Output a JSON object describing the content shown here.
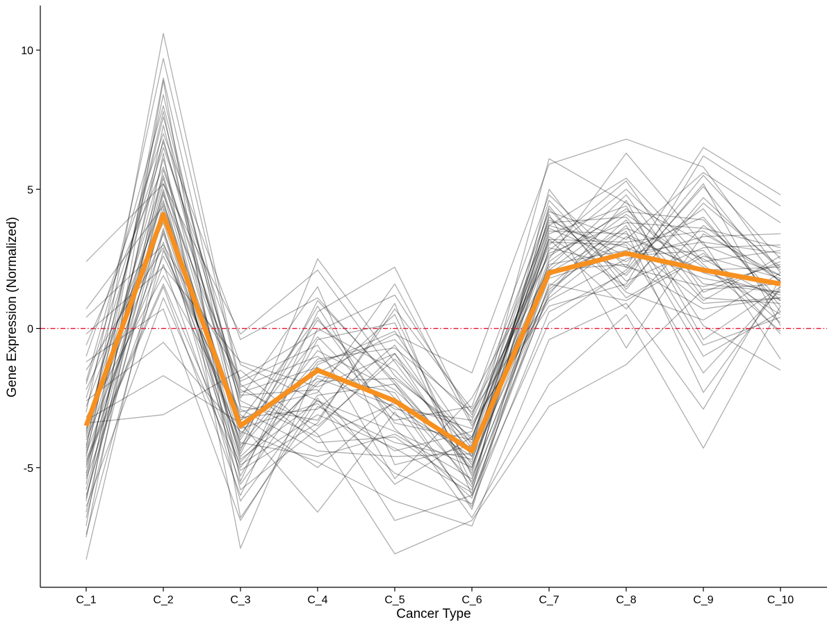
{
  "chart_data": {
    "type": "line",
    "title": "",
    "xlabel": "Cancer Type",
    "ylabel": "Gene Expression (Normalized)",
    "categories": [
      "C_1",
      "C_2",
      "C_3",
      "C_4",
      "C_5",
      "C_6",
      "C_7",
      "C_8",
      "C_9",
      "C_10"
    ],
    "y_ticks": [
      -5,
      0,
      5,
      10
    ],
    "ylim": [
      -9.3,
      11.6
    ],
    "grid": false,
    "legend": "none",
    "reference_line": {
      "y": 0,
      "style": "dot-dash",
      "color": "#e8102e"
    },
    "background_series_color": "#000000",
    "highlight_color": "#f7901e",
    "highlight_series": {
      "values": [
        -3.5,
        4.1,
        -3.5,
        -1.5,
        -2.6,
        -4.4,
        2.0,
        2.7,
        2.1,
        1.6
      ]
    },
    "series": [
      {
        "values": [
          2.4,
          5.2,
          -0.2,
          2.1,
          -1.7,
          -4.1,
          3.7,
          2.9,
          1.8,
          1.3
        ]
      },
      {
        "values": [
          0.7,
          4.4,
          -3.5,
          -1.6,
          -0.2,
          -1.6,
          5.9,
          6.8,
          5.8,
          2.0
        ]
      },
      {
        "values": [
          0.4,
          3.0,
          -1.8,
          -0.1,
          1.2,
          -3.1,
          4.2,
          3.2,
          5.6,
          3.8
        ]
      },
      {
        "values": [
          -0.2,
          2.2,
          -1.2,
          -2.1,
          -0.9,
          -4.3,
          6.1,
          4.5,
          3.1,
          2.7
        ]
      },
      {
        "values": [
          -0.6,
          5.8,
          -2.3,
          -1.4,
          -3.3,
          -2.8,
          4.8,
          2.2,
          6.5,
          4.8
        ]
      },
      {
        "values": [
          -1.0,
          7.0,
          -0.4,
          1.1,
          -2.0,
          -5.0,
          2.5,
          6.3,
          3.0,
          1.9
        ]
      },
      {
        "values": [
          -1.5,
          2.9,
          -4.0,
          0.3,
          -2.5,
          -5.5,
          3.3,
          1.5,
          4.5,
          2.2
        ]
      },
      {
        "values": [
          -1.9,
          8.0,
          -2.8,
          -3.3,
          0.7,
          -2.9,
          2.1,
          4.1,
          2.2,
          0.5
        ]
      },
      {
        "values": [
          -2.2,
          3.8,
          -4.4,
          2.5,
          -1.2,
          -4.9,
          1.9,
          3.1,
          0.9,
          1.1
        ]
      },
      {
        "values": [
          -2.5,
          6.5,
          -1.3,
          -2.6,
          -4.4,
          -3.7,
          3.9,
          2.6,
          2.8,
          -0.2
        ]
      },
      {
        "values": [
          -2.8,
          4.6,
          -5.3,
          -0.4,
          0.2,
          -5.6,
          1.2,
          4.6,
          -0.4,
          1.5
        ]
      },
      {
        "values": [
          -3.0,
          9.7,
          -2.1,
          -1.0,
          -2.9,
          -3.3,
          2.7,
          3.8,
          3.6,
          2.9
        ]
      },
      {
        "values": [
          -3.2,
          1.9,
          -3.2,
          -2.9,
          -0.6,
          -4.6,
          4.0,
          1.9,
          5.2,
          0.1
        ]
      },
      {
        "values": [
          -3.4,
          5.5,
          -3.9,
          0.8,
          -3.6,
          -6.1,
          1.6,
          1.0,
          2.6,
          1.8
        ]
      },
      {
        "values": [
          -3.6,
          3.4,
          -4.8,
          -1.9,
          -1.8,
          -3.9,
          3.0,
          5.3,
          1.3,
          2.4
        ]
      },
      {
        "values": [
          -3.7,
          7.6,
          -2.5,
          1.5,
          -4.9,
          -4.2,
          2.3,
          2.8,
          4.0,
          0.8
        ]
      },
      {
        "values": [
          -3.9,
          4.9,
          -5.8,
          -3.6,
          -0.9,
          -5.2,
          3.5,
          3.4,
          2.0,
          1.2
        ]
      },
      {
        "values": [
          -4.0,
          2.6,
          -3.0,
          -2.3,
          1.6,
          -3.5,
          1.0,
          2.5,
          3.3,
          3.4
        ]
      },
      {
        "values": [
          -4.2,
          6.1,
          -4.2,
          -0.8,
          -2.2,
          -4.8,
          4.3,
          1.3,
          0.3,
          2.0
        ]
      },
      {
        "values": [
          -4.3,
          10.6,
          -2.0,
          -4.1,
          -3.9,
          -5.8,
          2.0,
          3.6,
          2.5,
          1.0
        ]
      },
      {
        "values": [
          -4.5,
          3.1,
          -5.0,
          -1.2,
          -0.4,
          -3.2,
          3.8,
          4.0,
          1.0,
          2.6
        ]
      },
      {
        "values": [
          -4.6,
          8.4,
          -3.6,
          -2.7,
          -5.2,
          -6.3,
          0.6,
          2.0,
          5.1,
          1.6
        ]
      },
      {
        "values": [
          -4.8,
          1.5,
          -6.0,
          0.0,
          -1.5,
          -4.4,
          2.8,
          5.0,
          2.3,
          -0.1
        ]
      },
      {
        "values": [
          -4.9,
          5.2,
          -2.6,
          -3.9,
          -2.7,
          -3.6,
          3.2,
          0.7,
          3.7,
          1.7
        ]
      },
      {
        "values": [
          -5.0,
          4.0,
          -4.6,
          -2.0,
          0.5,
          -5.3,
          1.5,
          3.9,
          -0.6,
          0.4
        ]
      },
      {
        "values": [
          -5.2,
          6.8,
          -3.3,
          0.4,
          -3.4,
          -4.0,
          4.6,
          1.7,
          2.9,
          3.0
        ]
      },
      {
        "values": [
          -5.4,
          2.3,
          -5.6,
          -1.7,
          -2.3,
          -6.5,
          2.4,
          4.3,
          1.6,
          1.3
        ]
      },
      {
        "values": [
          -5.6,
          9.0,
          -2.9,
          -4.4,
          -4.6,
          -4.5,
          3.6,
          2.4,
          4.3,
          0.6
        ]
      },
      {
        "values": [
          -5.8,
          5.0,
          -4.3,
          -1.1,
          -0.7,
          -3.0,
          1.1,
          3.3,
          2.1,
          2.2
        ]
      },
      {
        "values": [
          -6.0,
          3.6,
          -6.2,
          -2.4,
          -2.0,
          -5.7,
          4.1,
          -0.7,
          3.4,
          1.9
        ]
      },
      {
        "values": [
          -6.2,
          7.3,
          -3.8,
          -0.3,
          -3.1,
          -4.3,
          2.2,
          4.8,
          1.1,
          0.9
        ]
      },
      {
        "values": [
          -6.4,
          1.1,
          -5.1,
          -3.4,
          0.9,
          -6.0,
          0.2,
          2.1,
          5.5,
          2.5
        ]
      },
      {
        "values": [
          -6.6,
          5.7,
          -2.4,
          -2.2,
          -5.6,
          -3.9,
          3.1,
          3.0,
          -1.6,
          1.4
        ]
      },
      {
        "values": [
          -6.8,
          4.3,
          -4.5,
          1.0,
          -1.9,
          -5.1,
          4.4,
          1.1,
          2.7,
          0.2
        ]
      },
      {
        "values": [
          -7.1,
          8.9,
          -6.8,
          -2.8,
          -4.1,
          -4.7,
          1.4,
          3.5,
          -2.3,
          1.5
        ]
      },
      {
        "values": [
          -7.4,
          2.8,
          -3.1,
          -5.0,
          -2.6,
          -6.4,
          2.9,
          2.2,
          1.5,
          2.3
        ]
      },
      {
        "values": [
          -7.5,
          6.3,
          -7.9,
          -1.3,
          -0.1,
          -4.2,
          3.4,
          4.4,
          0.1,
          -1.5
        ]
      },
      {
        "values": [
          -8.3,
          3.5,
          -4.1,
          -4.6,
          -3.8,
          -5.4,
          1.8,
          2.7,
          3.1,
          -1.1
        ]
      },
      {
        "values": [
          -3.3,
          -1.7,
          -3.4,
          -6.6,
          -3.0,
          -6.8,
          -2.0,
          0.5,
          -4.3,
          0.8
        ]
      },
      {
        "values": [
          -3.4,
          -3.1,
          -1.5,
          -3.8,
          -8.1,
          -6.9,
          -2.8,
          -1.3,
          1.4,
          1.6
        ]
      },
      {
        "values": [
          -2.6,
          -0.5,
          -3.7,
          -4.8,
          -6.2,
          -7.1,
          -0.4,
          0.9,
          -2.9,
          1.8
        ]
      },
      {
        "values": [
          -1.2,
          0.7,
          -6.9,
          -2.5,
          -6.9,
          -6.0,
          1.3,
          3.7,
          -1.0,
          0.6
        ]
      },
      {
        "values": [
          -4.7,
          1.6,
          -4.9,
          -3.1,
          -4.3,
          -5.9,
          5.0,
          1.4,
          4.7,
          2.1
        ]
      },
      {
        "values": [
          -5.3,
          4.8,
          -1.9,
          -0.6,
          -5.4,
          -2.5,
          2.6,
          4.2,
          3.9,
          1.0
        ]
      },
      {
        "values": [
          -3.8,
          7.8,
          -5.5,
          0.6,
          2.2,
          -3.4,
          0.8,
          1.6,
          6.2,
          4.4
        ]
      },
      {
        "values": [
          -2.0,
          6.7,
          -2.2,
          -3.5,
          -1.1,
          -4.0,
          3.7,
          5.4,
          2.4,
          2.8
        ]
      },
      {
        "values": [
          -6.1,
          4.5,
          -3.3,
          -1.8,
          -2.8,
          -4.6,
          2.1,
          2.3,
          0.7,
          1.1
        ]
      },
      {
        "values": [
          -4.4,
          5.4,
          -4.7,
          -2.6,
          -3.7,
          -5.0,
          3.2,
          3.1,
          3.5,
          1.7
        ]
      }
    ]
  }
}
